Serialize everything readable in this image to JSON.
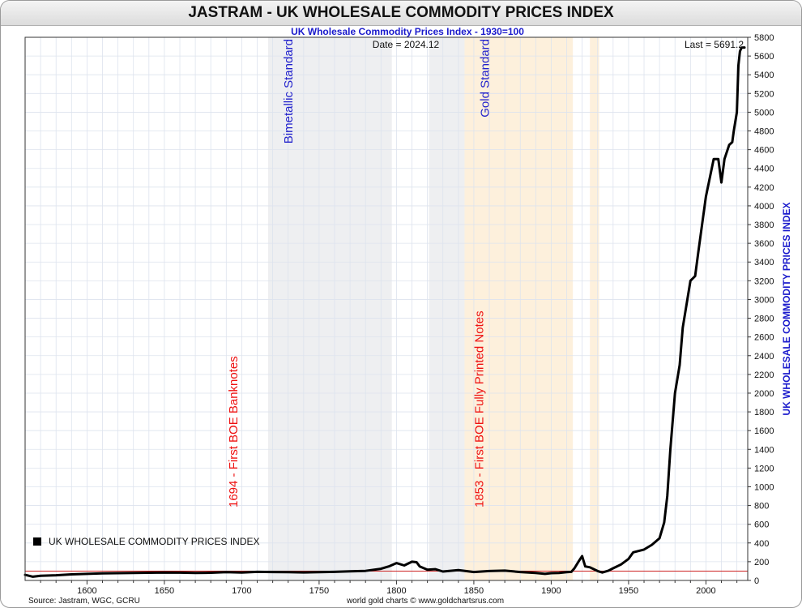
{
  "header": {
    "title": "JASTRAM - UK WHOLESALE COMMODITY PRICES INDEX"
  },
  "chart_data": {
    "type": "line",
    "title": "JASTRAM - UK WHOLESALE COMMODITY PRICES INDEX",
    "subtitle": "UK Wholesale Commodity Prices Index - 1930=100",
    "ylabel": "UK WHOLESALE COMMODITY PRICES INDEX",
    "date_label": "Date = 2024.12",
    "last_label": "Last = 5691.2",
    "legend_label": "UK WHOLESALE COMMODITY PRICES INDEX",
    "source": "Source: Jastram, WGC, GCRU",
    "credit": "world gold charts © www.goldchartsrus.com",
    "xlim": [
      1560,
      2027
    ],
    "ylim": [
      0,
      5800
    ],
    "x_ticks": [
      1600,
      1650,
      1700,
      1750,
      1800,
      1850,
      1900,
      1950,
      2000
    ],
    "y_ticks": [
      0,
      200,
      400,
      600,
      800,
      1000,
      1200,
      1400,
      1600,
      1800,
      2000,
      2200,
      2400,
      2600,
      2800,
      3000,
      3200,
      3400,
      3600,
      3800,
      4000,
      4200,
      4400,
      4600,
      4800,
      5000,
      5200,
      5400,
      5600,
      5800
    ],
    "grid": true,
    "legend_position": "bottom-left",
    "reference_line": {
      "value": 100,
      "color": "#cc2222"
    },
    "shaded_regions": [
      {
        "from": 1717,
        "to": 1797,
        "color": "#eeeff1",
        "label": "Bimetallic Standard",
        "label_color": "#2222cc"
      },
      {
        "from": 1821,
        "to": 1844,
        "color": "#eeeff1",
        "label": "",
        "label_color": ""
      },
      {
        "from": 1844,
        "to": 1914,
        "color": "#fdf0dc",
        "label": "Gold Standard",
        "label_color": "#2222cc"
      },
      {
        "from": 1925,
        "to": 1931,
        "color": "#fdf0dc",
        "label": "",
        "label_color": ""
      }
    ],
    "annotations": [
      {
        "x": 1694,
        "text": "1694 - First BOE Banknotes",
        "color": "#ee1111"
      },
      {
        "x": 1853,
        "text": "1853 - First BOE Fully Printed Notes",
        "color": "#ee1111"
      }
    ],
    "series": [
      {
        "name": "UK WHOLESALE COMMODITY PRICES INDEX",
        "color": "#000000",
        "x": [
          1560,
          1565,
          1570,
          1580,
          1590,
          1600,
          1610,
          1620,
          1630,
          1640,
          1650,
          1660,
          1670,
          1680,
          1690,
          1700,
          1710,
          1720,
          1730,
          1740,
          1750,
          1760,
          1770,
          1780,
          1790,
          1795,
          1800,
          1805,
          1810,
          1813,
          1815,
          1820,
          1825,
          1830,
          1840,
          1850,
          1860,
          1870,
          1880,
          1890,
          1896,
          1900,
          1905,
          1910,
          1913,
          1915,
          1918,
          1920,
          1922,
          1925,
          1930,
          1933,
          1937,
          1940,
          1945,
          1950,
          1953,
          1960,
          1965,
          1970,
          1973,
          1975,
          1977,
          1980,
          1983,
          1985,
          1988,
          1990,
          1993,
          1995,
          2000,
          2005,
          2008,
          2010,
          2012,
          2015,
          2017,
          2018,
          2020,
          2021,
          2022,
          2023,
          2024.9
        ],
        "y": [
          60,
          40,
          50,
          55,
          65,
          70,
          75,
          78,
          80,
          82,
          85,
          83,
          80,
          82,
          88,
          85,
          92,
          90,
          88,
          86,
          88,
          92,
          98,
          102,
          125,
          150,
          185,
          160,
          200,
          195,
          150,
          115,
          120,
          95,
          110,
          90,
          100,
          105,
          90,
          80,
          70,
          78,
          80,
          88,
          92,
          130,
          210,
          260,
          150,
          140,
          100,
          85,
          105,
          130,
          170,
          230,
          300,
          330,
          380,
          450,
          620,
          900,
          1400,
          2000,
          2300,
          2700,
          3000,
          3200,
          3250,
          3500,
          4100,
          4500,
          4500,
          4250,
          4500,
          4650,
          4680,
          4800,
          5000,
          5500,
          5650,
          5690,
          5691.2
        ]
      }
    ]
  }
}
